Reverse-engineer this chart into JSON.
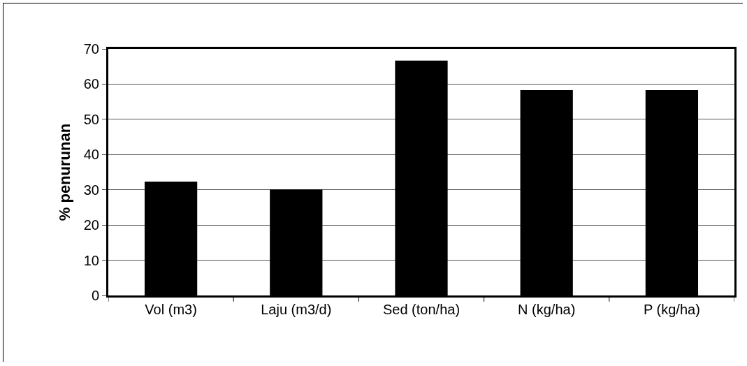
{
  "chart_data": {
    "type": "bar",
    "ylabel": "% penurunan",
    "categories": [
      "Vol (m3)",
      "Laju (m3/d)",
      "Sed (ton/ha)",
      "N (kg/ha)",
      "P (kg/ha)"
    ],
    "values": [
      32.3,
      30.1,
      66.7,
      58.3,
      58.3
    ],
    "color": "#000000",
    "ylim": [
      0,
      70
    ],
    "yticks": [
      0,
      10,
      20,
      30,
      40,
      50,
      60,
      70
    ],
    "grid": "y"
  }
}
